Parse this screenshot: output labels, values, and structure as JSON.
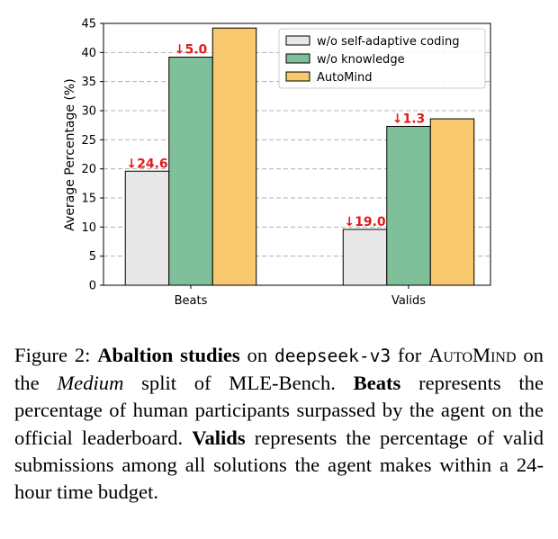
{
  "chart_data": {
    "type": "bar",
    "categories": [
      "Beats",
      "Valids"
    ],
    "series": [
      {
        "name": "w/o self-adaptive coding",
        "values": [
          19.6,
          9.6
        ],
        "color": "#e8e8e8"
      },
      {
        "name": "w/o knowledge",
        "values": [
          39.2,
          27.3
        ],
        "color": "#7fbf99"
      },
      {
        "name": "AutoMind",
        "values": [
          44.2,
          28.6
        ],
        "color": "#f7c86e"
      }
    ],
    "annotations": [
      {
        "category": "Beats",
        "series": "w/o self-adaptive coding",
        "text": "↓24.6"
      },
      {
        "category": "Beats",
        "series": "w/o knowledge",
        "text": "↓5.0"
      },
      {
        "category": "Valids",
        "series": "w/o self-adaptive coding",
        "text": "↓19.0"
      },
      {
        "category": "Valids",
        "series": "w/o knowledge",
        "text": "↓1.3"
      }
    ],
    "ylabel": "Average Percentage (%)",
    "xlabel": "",
    "ylim": [
      0,
      45
    ],
    "yticks": [
      0,
      5,
      10,
      15,
      20,
      25,
      30,
      35,
      40,
      45
    ],
    "grid": "horizontal dashed",
    "legend_position": "top-right"
  },
  "caption": {
    "figure_label": "Figure 2:",
    "bold1": "Abaltion studies",
    "text1": " on ",
    "model": "deepseek-v3",
    "text2": " for ",
    "automind": "AutoMind",
    "text3": " on the ",
    "medium": "Medium",
    "text4": " split of MLE-Bench. ",
    "bold_beats": "Beats",
    "text5": " represents the percentage of human participants surpassed by the agent on the official leaderboard. ",
    "bold_valids": "Valids",
    "text6": " represents the percentage of valid submissions among all solutions the agent makes within a 24-hour time budget."
  }
}
